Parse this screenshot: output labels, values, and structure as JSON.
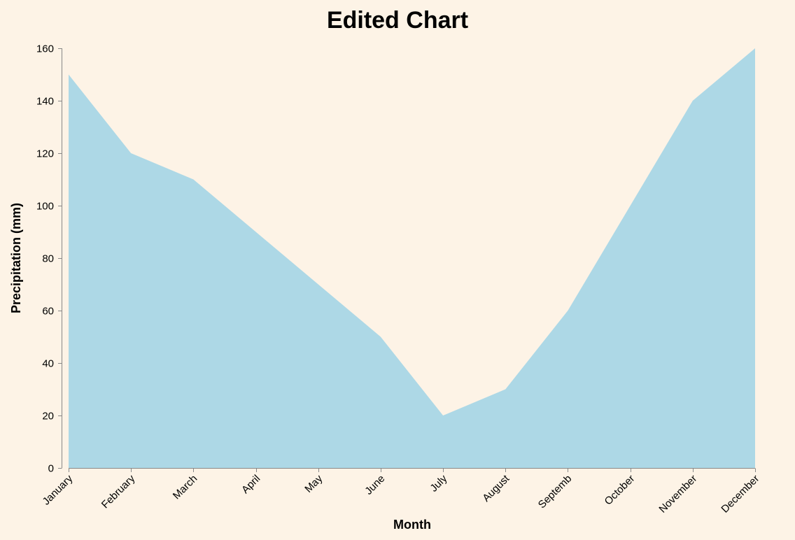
{
  "chart_data": {
    "type": "area",
    "title": "Edited Chart",
    "xlabel": "Month",
    "ylabel": "Precipitation (mm)",
    "categories": [
      "January",
      "February",
      "March",
      "April",
      "May",
      "June",
      "July",
      "August",
      "September",
      "October",
      "November",
      "December"
    ],
    "x_tick_labels": [
      "January",
      "February",
      "March",
      "April",
      "May",
      "June",
      "July",
      "August",
      "Septemb",
      "October",
      "November",
      "December"
    ],
    "values": [
      150,
      120,
      110,
      90,
      70,
      50,
      20,
      30,
      60,
      100,
      140,
      160
    ],
    "ylim": [
      0,
      160
    ],
    "yticks": [
      0,
      20,
      40,
      60,
      80,
      100,
      120,
      140,
      160
    ],
    "grid": false,
    "colors": {
      "fill": "#add8e6",
      "background": "#fdf3e6",
      "axis": "#888888"
    }
  }
}
